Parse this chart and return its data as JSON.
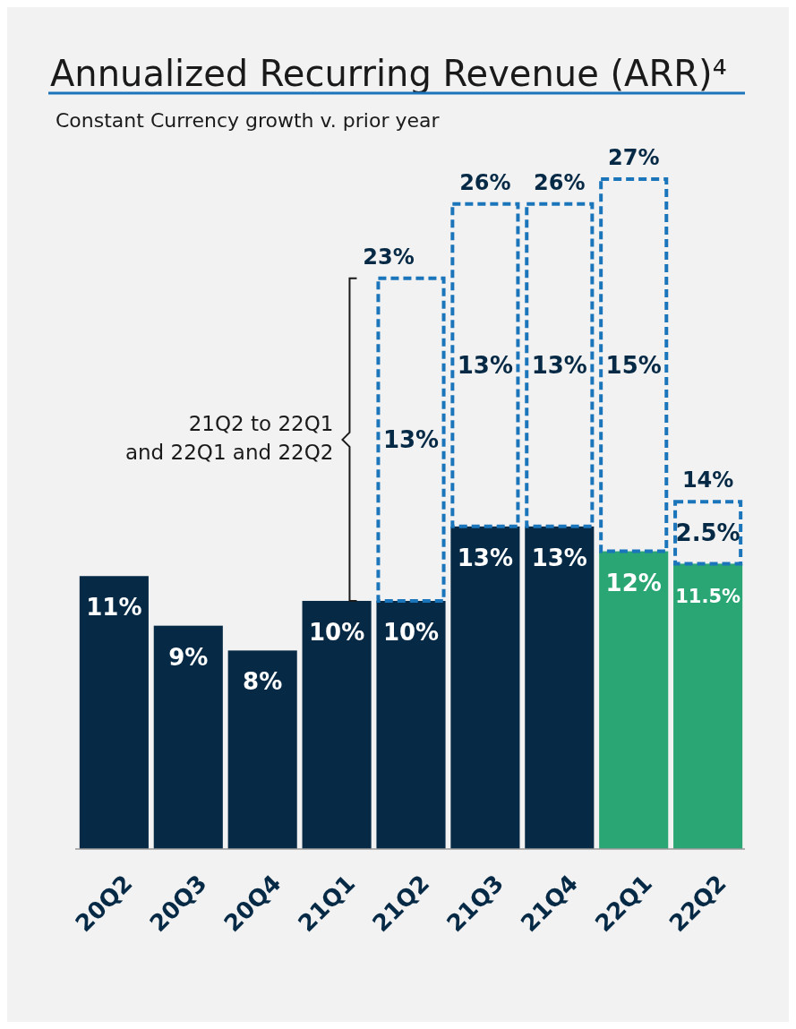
{
  "chart_data": {
    "type": "bar",
    "title": "Annualized Recurring Revenue (ARR)⁴",
    "subtitle": "Constant Currency growth v. prior year",
    "categories": [
      "20Q2",
      "20Q3",
      "20Q4",
      "21Q1",
      "21Q2",
      "21Q3",
      "21Q4",
      "22Q1",
      "22Q2"
    ],
    "stacked": true,
    "tick_labels": "x",
    "series": [
      {
        "colors": [
          "#062a45",
          "#062a45",
          "#062a45",
          "#062a45",
          "#062a45",
          "#062a45",
          "#062a45",
          "#2aa674",
          "#2aa674"
        ],
        "values": [
          11,
          9,
          8,
          10,
          10,
          13,
          13,
          12,
          11.5
        ],
        "value_labels": [
          "11%",
          "9%",
          "8%",
          "10%",
          "10%",
          "13%",
          "13%",
          "12%",
          "11.5%"
        ]
      },
      {
        "color": "#1b75bb",
        "line_style": "dashed",
        "values": [
          null,
          null,
          null,
          null,
          13,
          13,
          13,
          15,
          2.5
        ],
        "value_labels": [
          null,
          null,
          null,
          null,
          "13%",
          "13%",
          "13%",
          "15%",
          "2.5%"
        ]
      }
    ],
    "totals": [
      null,
      null,
      null,
      null,
      "23%",
      "26%",
      "26%",
      "27%",
      "14%"
    ],
    "annotations": [
      "21Q2 to 22Q1\nand 22Q1 and 22Q2"
    ]
  }
}
